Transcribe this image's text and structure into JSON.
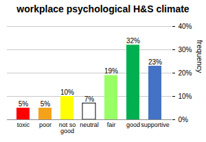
{
  "chart_data": {
    "type": "bar",
    "title": "workplace psychological H&S climate",
    "categories": [
      "toxic",
      "poor",
      "not so good",
      "neutral",
      "fair",
      "good",
      "supportive"
    ],
    "values": [
      5,
      5,
      10,
      7,
      19,
      32,
      23
    ],
    "value_labels": [
      "5%",
      "5%",
      "10%",
      "7%",
      "19%",
      "32%",
      "23%"
    ],
    "colors": [
      "#ff0000",
      "#f5a21b",
      "#ffff00",
      "#ffffff",
      "#99ff66",
      "#00b050",
      "#4472c4"
    ],
    "ylim": [
      0,
      40
    ],
    "yticks": [
      {
        "value": 0,
        "label": "0%"
      },
      {
        "value": 10,
        "label": "10%"
      },
      {
        "value": 20,
        "label": "20%"
      },
      {
        "value": 30,
        "label": "30%"
      },
      {
        "value": 40,
        "label": "40%"
      }
    ],
    "y_label": "frequency",
    "grid": true,
    "data_labels": true
  }
}
